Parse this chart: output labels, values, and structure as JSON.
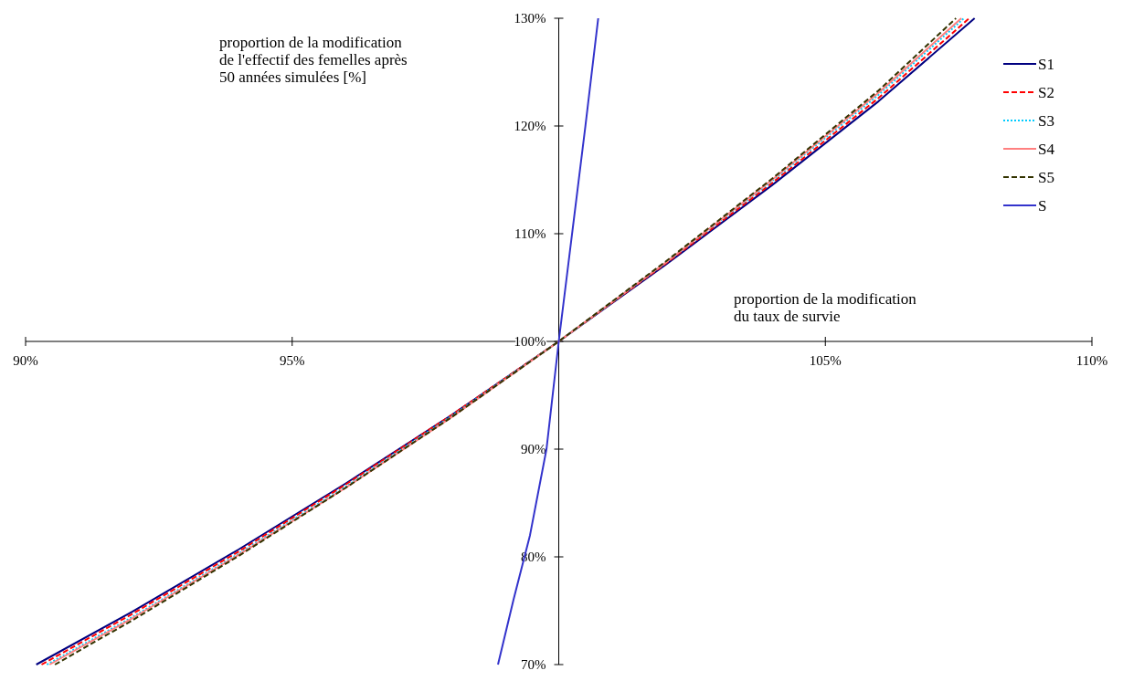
{
  "chart_data": {
    "type": "line",
    "xlabel": "proportion de la modification\ndu taux de survie",
    "ylabel": "proportion de la modification\nde l'effectif des femelles après\n50 années simulées [%]",
    "xlim": [
      90,
      110
    ],
    "ylim": [
      70,
      130
    ],
    "xticks": [
      {
        "value": 90,
        "label": "90%"
      },
      {
        "value": 95,
        "label": "95%"
      },
      {
        "value": 100,
        "label": null
      },
      {
        "value": 105,
        "label": "105%"
      },
      {
        "value": 110,
        "label": "110%"
      }
    ],
    "yticks": [
      {
        "value": 70,
        "label": "70%"
      },
      {
        "value": 80,
        "label": "80%"
      },
      {
        "value": 90,
        "label": "90%"
      },
      {
        "value": 100,
        "label": "100%"
      },
      {
        "value": 110,
        "label": "110%"
      },
      {
        "value": 120,
        "label": "120%"
      },
      {
        "value": 130,
        "label": "130%"
      }
    ],
    "grid": false,
    "legend": "top right",
    "series": [
      {
        "name": "S1",
        "color": "#000080",
        "line_style": "solid",
        "x": [
          90.2,
          92,
          94,
          96,
          98,
          100,
          102,
          104,
          106,
          107.8
        ],
        "values": [
          70,
          74.9,
          80.7,
          86.8,
          93.2,
          100,
          107.1,
          114.5,
          122.3,
          130
        ]
      },
      {
        "name": "S2",
        "color": "#ff0000",
        "line_style": "dashed",
        "x": [
          90.3,
          92,
          94,
          96,
          98,
          100,
          102,
          104,
          106,
          107.7
        ],
        "values": [
          70,
          74.7,
          80.5,
          86.7,
          93.2,
          100,
          107.2,
          114.7,
          122.6,
          130
        ]
      },
      {
        "name": "S3",
        "color": "#00ccff",
        "line_style": "dotted",
        "x": [
          90.4,
          92,
          94,
          96,
          98,
          100,
          102,
          104,
          106,
          107.6
        ],
        "values": [
          70,
          74.4,
          80.3,
          86.5,
          93.1,
          100,
          107.3,
          114.9,
          122.9,
          130
        ]
      },
      {
        "name": "S4",
        "color": "#ff8080",
        "line_style": "solid",
        "x": [
          90.45,
          92,
          94,
          96,
          98,
          100,
          102,
          104,
          106,
          107.55
        ],
        "values": [
          70,
          74.3,
          80.2,
          86.4,
          93.0,
          100,
          107.3,
          115.0,
          123.1,
          130
        ]
      },
      {
        "name": "S5",
        "color": "#333300",
        "line_style": "dashed",
        "x": [
          90.55,
          92,
          94,
          96,
          98,
          100,
          102,
          104,
          106,
          107.45
        ],
        "values": [
          70,
          74.1,
          80.1,
          86.4,
          93.0,
          100,
          107.4,
          115.1,
          123.3,
          130
        ]
      },
      {
        "name": "S",
        "color": "#3333cc",
        "line_style": "solid",
        "x": [
          98.86,
          99.15,
          99.46,
          99.77,
          100,
          100.25,
          100.5,
          100.74
        ],
        "values": [
          70,
          76,
          82,
          90,
          100,
          110,
          120,
          130
        ]
      }
    ]
  }
}
